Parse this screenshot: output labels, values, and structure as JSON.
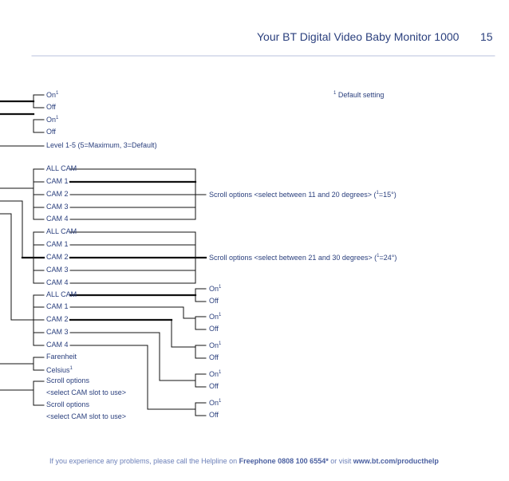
{
  "header": {
    "title": "Your BT Digital Video Baby Monitor 1000",
    "page_number": "15"
  },
  "note": {
    "marker": "1",
    "text": "Default setting"
  },
  "menu": {
    "on": "On",
    "off": "Off",
    "level": "Level 1-5 (5=Maximum, 3=Default)",
    "all_cam": "ALL CAM",
    "cam1": "CAM 1",
    "cam2": "CAM 2",
    "cam3": "CAM 3",
    "cam4": "CAM 4",
    "farenheit": "Farenheit",
    "celsius": "Celsius",
    "scroll_options": "Scroll options",
    "select_cam_slot": "<select CAM slot to use>",
    "superscript": "1"
  },
  "scroll_notes": {
    "first": "Scroll options <select between 11 and 20 degrees> (",
    "first_tail": "=15°)",
    "second": "Scroll options <select between 21 and 30 degrees> (",
    "second_tail": "=24°)"
  },
  "footer": {
    "prefix": "If you experience any problems, please call the Helpline on ",
    "freephone": "Freephone 0808 100 6554*",
    "middle": " or visit ",
    "url": "www.bt.com/producthelp"
  }
}
